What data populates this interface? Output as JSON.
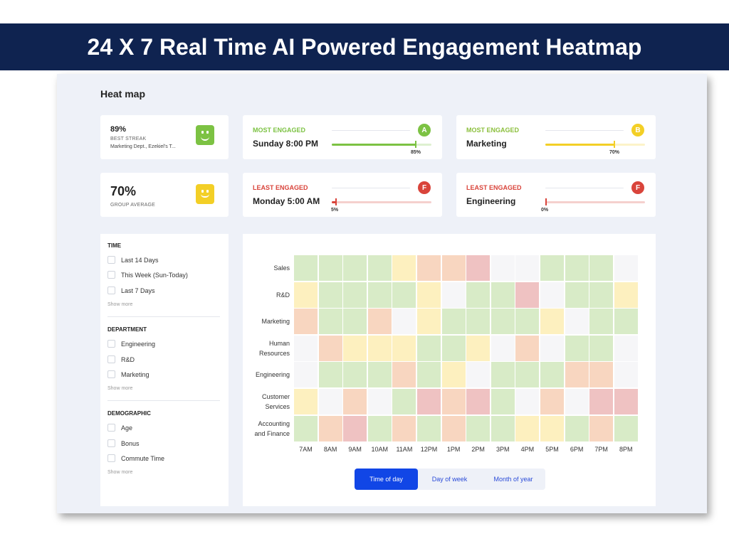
{
  "banner": {
    "title": "24 X 7 Real Time AI Powered Engagement Heatmap"
  },
  "app": {
    "title": "Heat map"
  },
  "cards": {
    "streak": {
      "value": "89%",
      "label": "BEST STREAK",
      "detail": "Marketing Dept., Ezekiel's T...",
      "emoji_color": "#7cc243"
    },
    "group": {
      "value": "70%",
      "label": "GROUP AVERAGE",
      "emoji_color": "#f3cf26"
    },
    "most_time": {
      "label": "MOST ENGAGED",
      "value": "Sunday 8:00 PM",
      "badge": "A",
      "pct": "85%",
      "fill": 0.85,
      "color": "#7cc243"
    },
    "most_dept": {
      "label": "MOST ENGAGED",
      "value": "Marketing",
      "badge": "B",
      "pct": "70%",
      "fill": 0.7,
      "color": "#f3cf26"
    },
    "least_time": {
      "label": "LEAST ENGAGED",
      "value": "Monday 5:00 AM",
      "badge": "F",
      "pct": "5%",
      "fill": 0.05,
      "color": "#d9443b"
    },
    "least_dept": {
      "label": "LEAST ENGAGED",
      "value": "Engineering",
      "badge": "F",
      "pct": "0%",
      "fill": 0.0,
      "color": "#d9443b"
    }
  },
  "filters": {
    "time": {
      "heading": "TIME",
      "items": [
        "Last 14 Days",
        "This Week (Sun-Today)",
        "Last 7 Days"
      ],
      "show_more": "Show more"
    },
    "department": {
      "heading": "DEPARTMENT",
      "items": [
        "Engineering",
        "R&D",
        "Marketing"
      ],
      "show_more": "Show more"
    },
    "demographic": {
      "heading": "DEMOGRAPHIC",
      "items": [
        "Age",
        "Bonus",
        "Commute Time"
      ],
      "show_more": "Show more"
    }
  },
  "chart_data": {
    "type": "heatmap",
    "rows": [
      "Sales",
      "R&D",
      "Marketing",
      "Human Resources",
      "Engineering",
      "Customer Services",
      "Accounting and Finance"
    ],
    "columns": [
      "7AM",
      "8AM",
      "9AM",
      "10AM",
      "11AM",
      "12PM",
      "1PM",
      "2PM",
      "3PM",
      "4PM",
      "5PM",
      "6PM",
      "7PM",
      "8PM"
    ],
    "levels": {
      "g": "#d8ebc7",
      "y": "#fdf0bf",
      "o": "#f8d6c0",
      "r": "#efc2c2",
      "w": "#f6f6f8"
    },
    "values": [
      [
        "g",
        "g",
        "g",
        "g",
        "y",
        "o",
        "o",
        "r",
        "w",
        "w",
        "g",
        "g",
        "g",
        "w"
      ],
      [
        "y",
        "g",
        "g",
        "g",
        "g",
        "y",
        "w",
        "g",
        "g",
        "r",
        "w",
        "g",
        "g",
        "y"
      ],
      [
        "o",
        "g",
        "g",
        "o",
        "w",
        "y",
        "g",
        "g",
        "g",
        "g",
        "y",
        "w",
        "g",
        "g"
      ],
      [
        "w",
        "o",
        "y",
        "y",
        "y",
        "g",
        "g",
        "y",
        "w",
        "o",
        "w",
        "g",
        "g",
        "w"
      ],
      [
        "w",
        "g",
        "g",
        "g",
        "o",
        "g",
        "y",
        "w",
        "g",
        "g",
        "g",
        "o",
        "o",
        "w"
      ],
      [
        "y",
        "w",
        "o",
        "w",
        "g",
        "r",
        "o",
        "r",
        "g",
        "w",
        "o",
        "w",
        "r",
        "r"
      ],
      [
        "g",
        "o",
        "r",
        "g",
        "o",
        "g",
        "o",
        "g",
        "g",
        "y",
        "y",
        "g",
        "o",
        "g"
      ]
    ]
  },
  "toggle": {
    "options": [
      "Time of day",
      "Day of week",
      "Month of year"
    ],
    "active": 0
  }
}
